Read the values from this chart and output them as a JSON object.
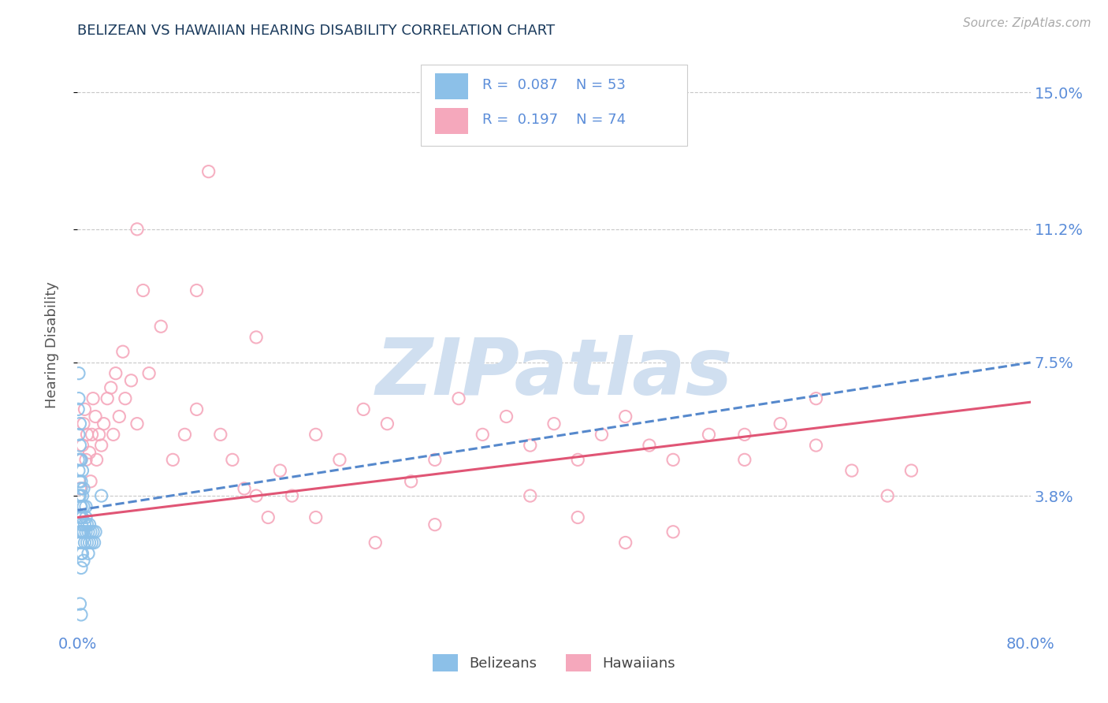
{
  "title": "BELIZEAN VS HAWAIIAN HEARING DISABILITY CORRELATION CHART",
  "source": "Source: ZipAtlas.com",
  "ylabel": "Hearing Disability",
  "xlim": [
    0.0,
    0.8
  ],
  "ylim": [
    0.0,
    0.16
  ],
  "yticks": [
    0.038,
    0.075,
    0.112,
    0.15
  ],
  "ytick_labels": [
    "3.8%",
    "7.5%",
    "11.2%",
    "15.0%"
  ],
  "xticks": [
    0.0,
    0.8
  ],
  "xtick_labels": [
    "0.0%",
    "80.0%"
  ],
  "belizean_color": "#8cc0e8",
  "hawaiian_color": "#f5a8bc",
  "belizean_line_color": "#5588cc",
  "hawaiian_line_color": "#e05575",
  "title_color": "#1a3a5c",
  "tick_label_color": "#5b8dd9",
  "ylabel_color": "#555555",
  "legend_R_belizean": "0.087",
  "legend_N_belizean": "53",
  "legend_R_hawaiian": "0.197",
  "legend_N_hawaiian": "74",
  "background_color": "#ffffff",
  "grid_color": "#c8c8c8",
  "watermark_color": "#d0dff0",
  "bel_x": [
    0.0005,
    0.001,
    0.001,
    0.001,
    0.0015,
    0.002,
    0.002,
    0.002,
    0.002,
    0.0025,
    0.003,
    0.003,
    0.003,
    0.003,
    0.003,
    0.003,
    0.003,
    0.0035,
    0.004,
    0.004,
    0.004,
    0.004,
    0.005,
    0.005,
    0.005,
    0.006,
    0.006,
    0.007,
    0.007,
    0.008,
    0.008,
    0.009,
    0.009,
    0.01,
    0.01,
    0.011,
    0.012,
    0.013,
    0.014,
    0.015,
    0.0005,
    0.001,
    0.001,
    0.002,
    0.002,
    0.003,
    0.003,
    0.004,
    0.005,
    0.007,
    0.002,
    0.003,
    0.02
  ],
  "bel_y": [
    0.048,
    0.055,
    0.045,
    0.038,
    0.042,
    0.048,
    0.038,
    0.032,
    0.028,
    0.035,
    0.04,
    0.035,
    0.032,
    0.028,
    0.025,
    0.022,
    0.018,
    0.03,
    0.038,
    0.032,
    0.028,
    0.022,
    0.035,
    0.028,
    0.02,
    0.03,
    0.025,
    0.032,
    0.028,
    0.03,
    0.025,
    0.028,
    0.022,
    0.03,
    0.025,
    0.028,
    0.025,
    0.028,
    0.025,
    0.028,
    0.062,
    0.072,
    0.065,
    0.058,
    0.052,
    0.048,
    0.042,
    0.045,
    0.04,
    0.035,
    0.008,
    0.005,
    0.038
  ],
  "haw_x": [
    0.002,
    0.003,
    0.004,
    0.005,
    0.006,
    0.007,
    0.008,
    0.01,
    0.011,
    0.012,
    0.013,
    0.015,
    0.016,
    0.018,
    0.02,
    0.022,
    0.025,
    0.028,
    0.03,
    0.032,
    0.035,
    0.038,
    0.04,
    0.045,
    0.05,
    0.055,
    0.06,
    0.07,
    0.08,
    0.09,
    0.1,
    0.11,
    0.12,
    0.13,
    0.14,
    0.15,
    0.16,
    0.17,
    0.18,
    0.2,
    0.22,
    0.24,
    0.26,
    0.28,
    0.3,
    0.32,
    0.34,
    0.36,
    0.38,
    0.4,
    0.42,
    0.44,
    0.46,
    0.48,
    0.5,
    0.53,
    0.56,
    0.59,
    0.62,
    0.65,
    0.68,
    0.7,
    0.05,
    0.1,
    0.15,
    0.2,
    0.25,
    0.3,
    0.38,
    0.42,
    0.46,
    0.5,
    0.56,
    0.62
  ],
  "haw_y": [
    0.04,
    0.048,
    0.052,
    0.058,
    0.062,
    0.048,
    0.055,
    0.05,
    0.042,
    0.055,
    0.065,
    0.06,
    0.048,
    0.055,
    0.052,
    0.058,
    0.065,
    0.068,
    0.055,
    0.072,
    0.06,
    0.078,
    0.065,
    0.07,
    0.058,
    0.095,
    0.072,
    0.085,
    0.048,
    0.055,
    0.062,
    0.128,
    0.055,
    0.048,
    0.04,
    0.038,
    0.032,
    0.045,
    0.038,
    0.055,
    0.048,
    0.062,
    0.058,
    0.042,
    0.048,
    0.065,
    0.055,
    0.06,
    0.052,
    0.058,
    0.048,
    0.055,
    0.06,
    0.052,
    0.048,
    0.055,
    0.048,
    0.058,
    0.052,
    0.045,
    0.038,
    0.045,
    0.112,
    0.095,
    0.082,
    0.032,
    0.025,
    0.03,
    0.038,
    0.032,
    0.025,
    0.028,
    0.055,
    0.065
  ]
}
